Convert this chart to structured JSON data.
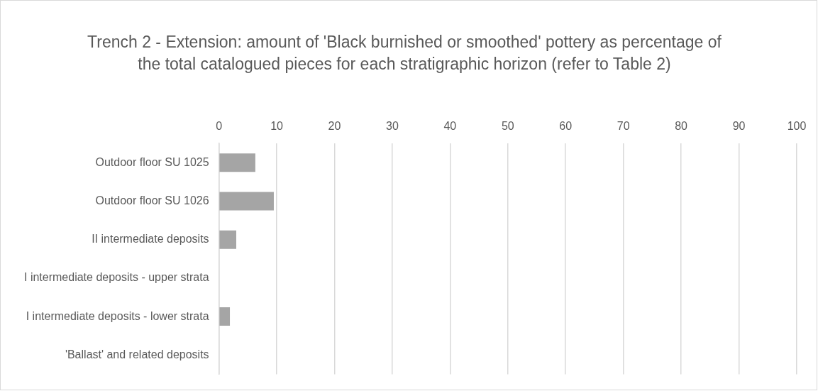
{
  "chart_data": {
    "type": "bar",
    "orientation": "horizontal",
    "title": "Trench 2 - Extension: amount of 'Black burnished or smoothed' pottery as percentage of the total catalogued pieces for each stratigraphic horizon (refer to Table 2)",
    "categories": [
      "Outdoor floor SU 1025",
      "Outdoor floor SU 1026",
      "II intermediate deposits",
      "I intermediate deposits - upper strata",
      "I intermediate deposits - lower strata",
      "'Ballast' and related deposits"
    ],
    "values": [
      6.3,
      9.5,
      3.0,
      0,
      1.9,
      0
    ],
    "color": "#a5a5a5",
    "xlim": [
      0,
      100
    ],
    "xticks": [
      0,
      10,
      20,
      30,
      40,
      50,
      60,
      70,
      80,
      90,
      100
    ],
    "grid": "x",
    "legend": false
  }
}
